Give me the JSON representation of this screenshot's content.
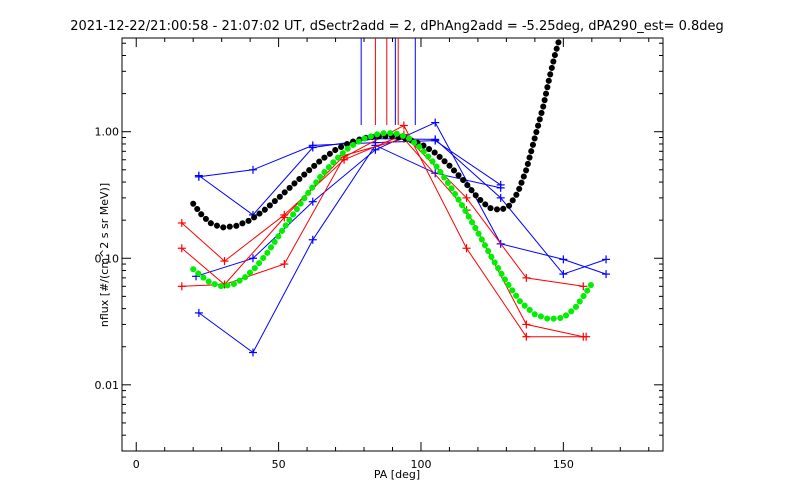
{
  "chart_data": {
    "type": "line",
    "title": "2021-12-22/21:00:58 - 21:07:02 UT, dSectr2add = 2, dPhAng2add = -5.25deg, dPA290_est=   0.8deg",
    "xlabel": "PA [deg]",
    "ylabel": "nflux [#/(cm^2 s sr MeV)]",
    "xlim": [
      -5,
      185
    ],
    "ylim": [
      0.003,
      5.5
    ],
    "yscale": "log",
    "x_ticks": [
      0,
      50,
      100,
      150
    ],
    "x_tick_labels": [
      "0",
      "50",
      "100",
      "150"
    ],
    "y_ticks": [
      0.01,
      0.1,
      1.0
    ],
    "y_tick_labels": [
      "0.01",
      "0.10",
      "1.00"
    ],
    "grid": false,
    "legend": "none",
    "series": [
      {
        "color": "#0000ff",
        "marker": "plus",
        "values": [
          [
            22,
            0.44
          ],
          [
            41,
            0.5
          ],
          [
            62,
            0.78
          ],
          [
            84,
            0.82
          ],
          [
            105,
            0.85
          ],
          [
            128,
            0.38
          ]
        ]
      },
      {
        "color": "#0000ff",
        "marker": "plus",
        "values": [
          [
            22,
            0.45
          ],
          [
            41,
            0.22
          ],
          [
            62,
            0.75
          ],
          [
            84,
            0.88
          ],
          [
            105,
            0.87
          ],
          [
            128,
            0.3
          ],
          [
            150,
            0.075
          ],
          [
            165,
            0.098
          ]
        ]
      },
      {
        "color": "#0000ff",
        "marker": "plus",
        "values": [
          [
            21,
            0.072
          ],
          [
            41,
            0.1
          ],
          [
            62,
            0.28
          ],
          [
            84,
            0.72
          ],
          [
            105,
            1.18
          ],
          [
            128,
            0.13
          ],
          [
            150,
            0.098
          ],
          [
            165,
            0.075
          ]
        ]
      },
      {
        "color": "#0000ff",
        "marker": "plus",
        "values": [
          [
            22,
            0.037
          ],
          [
            41,
            0.018
          ],
          [
            62,
            0.14
          ],
          [
            84,
            0.78
          ],
          [
            105,
            0.47
          ],
          [
            128,
            0.36
          ]
        ]
      },
      {
        "color": "#ff0000",
        "marker": "plus",
        "values": [
          [
            16,
            0.19
          ],
          [
            31,
            0.095
          ],
          [
            52,
            0.22
          ],
          [
            73,
            0.6
          ],
          [
            94,
            0.95
          ],
          [
            116,
            0.3
          ],
          [
            137,
            0.07
          ],
          [
            157,
            0.06
          ]
        ]
      },
      {
        "color": "#ff0000",
        "marker": "plus",
        "values": [
          [
            16,
            0.12
          ],
          [
            31,
            0.062
          ],
          [
            52,
            0.21
          ],
          [
            73,
            0.65
          ],
          [
            94,
            0.88
          ],
          [
            116,
            0.24
          ],
          [
            137,
            0.03
          ],
          [
            157,
            0.024
          ]
        ]
      },
      {
        "color": "#ff0000",
        "marker": "plus",
        "values": [
          [
            16,
            0.06
          ],
          [
            31,
            0.062
          ],
          [
            52,
            0.09
          ],
          [
            73,
            0.63
          ],
          [
            94,
            1.12
          ],
          [
            116,
            0.12
          ],
          [
            137,
            0.024
          ],
          [
            158,
            0.024
          ]
        ]
      }
    ],
    "fits": [
      {
        "color": "#000000",
        "style": "thick-dots",
        "values": [
          [
            20,
            0.27
          ],
          [
            23,
            0.22
          ],
          [
            26,
            0.19
          ],
          [
            30,
            0.175
          ],
          [
            35,
            0.18
          ],
          [
            40,
            0.2
          ],
          [
            45,
            0.24
          ],
          [
            50,
            0.3
          ],
          [
            55,
            0.38
          ],
          [
            60,
            0.48
          ],
          [
            65,
            0.6
          ],
          [
            70,
            0.72
          ],
          [
            75,
            0.82
          ],
          [
            80,
            0.89
          ],
          [
            85,
            0.92
          ],
          [
            90,
            0.92
          ],
          [
            95,
            0.88
          ],
          [
            100,
            0.8
          ],
          [
            105,
            0.68
          ],
          [
            110,
            0.54
          ],
          [
            115,
            0.41
          ],
          [
            120,
            0.3
          ],
          [
            124,
            0.25
          ],
          [
            128,
            0.24
          ],
          [
            131,
            0.26
          ],
          [
            134,
            0.33
          ],
          [
            137,
            0.5
          ],
          [
            140,
            0.9
          ],
          [
            143,
            1.6
          ],
          [
            145,
            2.6
          ],
          [
            147,
            4.0
          ],
          [
            148.5,
            5.3
          ]
        ]
      },
      {
        "color": "#00ee00",
        "style": "thick-dots",
        "values": [
          [
            20,
            0.082
          ],
          [
            23,
            0.072
          ],
          [
            26,
            0.064
          ],
          [
            30,
            0.06
          ],
          [
            34,
            0.062
          ],
          [
            38,
            0.07
          ],
          [
            42,
            0.085
          ],
          [
            46,
            0.11
          ],
          [
            50,
            0.15
          ],
          [
            55,
            0.22
          ],
          [
            60,
            0.32
          ],
          [
            65,
            0.45
          ],
          [
            70,
            0.6
          ],
          [
            75,
            0.76
          ],
          [
            80,
            0.88
          ],
          [
            85,
            0.96
          ],
          [
            88,
            0.98
          ],
          [
            92,
            0.96
          ],
          [
            96,
            0.88
          ],
          [
            100,
            0.74
          ],
          [
            105,
            0.55
          ],
          [
            110,
            0.38
          ],
          [
            115,
            0.25
          ],
          [
            120,
            0.16
          ],
          [
            125,
            0.1
          ],
          [
            130,
            0.065
          ],
          [
            135,
            0.045
          ],
          [
            140,
            0.036
          ],
          [
            145,
            0.033
          ],
          [
            150,
            0.034
          ],
          [
            154,
            0.04
          ],
          [
            157,
            0.05
          ],
          [
            160,
            0.063
          ]
        ]
      }
    ],
    "vertical_markers": [
      {
        "x": 79,
        "color": "#0000ff"
      },
      {
        "x": 84,
        "color": "#ff0000"
      },
      {
        "x": 88,
        "color": "#ff0000"
      },
      {
        "x": 91,
        "color": "#0000ff"
      },
      {
        "x": 92,
        "color": "#ff0000"
      },
      {
        "x": 98,
        "color": "#0000ff"
      }
    ]
  }
}
